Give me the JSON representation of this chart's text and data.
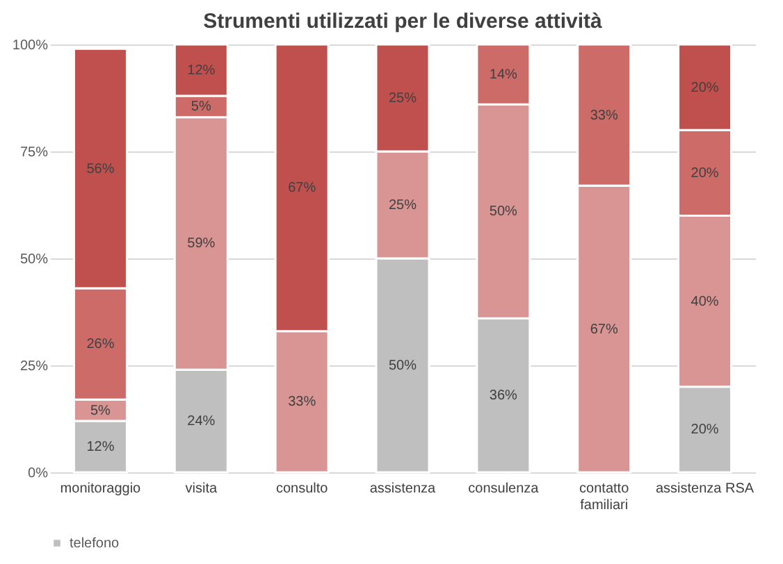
{
  "chart_data": {
    "type": "bar",
    "stacked": true,
    "title": "Strumenti utilizzati per le diverse attività",
    "categories": [
      "monitoraggio",
      "visita",
      "consulto",
      "assistenza",
      "consulenza",
      "contatto familiari",
      "assistenza RSA"
    ],
    "series": [
      {
        "name": "telefono",
        "color": "#bfbfbf",
        "values": [
          12,
          24,
          null,
          50,
          36,
          null,
          20
        ],
        "value_labels": [
          "12%",
          "24%",
          null,
          "50%",
          "36%",
          null,
          "20%"
        ]
      },
      {
        "color": "#d99594",
        "values": [
          5,
          59,
          33,
          25,
          50,
          67,
          40
        ],
        "value_labels": [
          "5%",
          "59%",
          "33%",
          "25%",
          "50%",
          "67%",
          "40%"
        ]
      },
      {
        "color": "#cd6b69",
        "values": [
          26,
          5,
          null,
          null,
          14,
          33,
          20
        ],
        "value_labels": [
          "26%",
          "5%",
          null,
          null,
          "14%",
          "33%",
          "20%"
        ]
      },
      {
        "color": "#c0504d",
        "values": [
          56,
          12,
          67,
          25,
          null,
          null,
          20
        ],
        "value_labels": [
          "56%",
          "12%",
          "67%",
          "25%",
          null,
          null,
          "20%"
        ]
      }
    ],
    "ylim": [
      0,
      100
    ],
    "yticks": [
      {
        "value": 0,
        "label": "0%"
      },
      {
        "value": 25,
        "label": "25%"
      },
      {
        "value": 50,
        "label": "50%"
      },
      {
        "value": 75,
        "label": "75%"
      },
      {
        "value": 100,
        "label": "100%"
      }
    ],
    "grid": "y",
    "legend": "bottom"
  }
}
